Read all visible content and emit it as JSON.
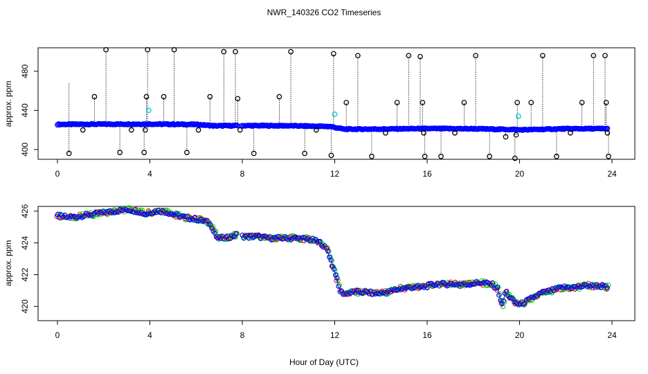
{
  "figure": {
    "title": "NWR_140326  CO2 Timeseries",
    "xlabel": "Hour of Day (UTC)"
  },
  "colors": {
    "main_series": "#0000ff",
    "spikes": "#000000",
    "flagged": "#00cccc",
    "series_alt1": "#00cc00",
    "series_alt2": "#ff0000"
  },
  "chart_data": [
    {
      "type": "scatter",
      "panel": "top",
      "ylabel": "approx. ppm",
      "xlim": [
        0,
        24
      ],
      "ylim": [
        390,
        504
      ],
      "x_ticks": [
        0,
        4,
        8,
        12,
        16,
        20,
        24
      ],
      "y_ticks": [
        400,
        440,
        480
      ],
      "baseline": {
        "x": [
          0,
          2,
          4,
          6,
          6.8,
          7.8,
          8,
          10,
          11.8,
          12.4,
          14,
          16,
          18,
          19.8,
          20,
          22,
          23.8
        ],
        "y": [
          425.7,
          425.9,
          426.0,
          425.6,
          424.2,
          424.4,
          424.4,
          424.3,
          423.5,
          420.8,
          420.9,
          421.4,
          421.2,
          420.4,
          420.1,
          421.2,
          421.3
        ]
      },
      "spikes": {
        "x": [
          0.5,
          1.1,
          1.6,
          2.1,
          2.7,
          3.2,
          3.75,
          3.8,
          3.85,
          3.9,
          4.6,
          5.05,
          5.6,
          6.1,
          6.6,
          7.2,
          7.7,
          7.8,
          7.9,
          8.5,
          9.6,
          10.1,
          10.7,
          11.2,
          11.85,
          11.95,
          12.5,
          13.0,
          13.6,
          14.2,
          14.7,
          15.2,
          15.7,
          15.8,
          15.85,
          15.9,
          16.6,
          17.2,
          17.6,
          18.1,
          18.7,
          19.4,
          19.8,
          19.85,
          19.9,
          20.5,
          21.0,
          21.6,
          22.2,
          22.7,
          23.2,
          23.7,
          23.75,
          23.8,
          23.85
        ],
        "y": [
          396,
          420,
          454,
          502,
          397,
          420,
          397,
          420,
          454,
          502,
          454,
          502,
          397,
          420,
          454,
          500,
          500,
          452,
          420,
          396,
          454,
          500,
          396,
          420,
          394,
          498,
          448,
          496,
          393,
          417,
          448,
          496,
          495,
          448,
          417,
          393,
          393,
          417,
          448,
          496,
          393,
          413,
          391,
          415,
          448,
          448,
          496,
          393,
          417,
          448,
          496,
          496,
          448,
          417,
          393
        ],
        "y_from": [
          468,
          425,
          425,
          425,
          425,
          425,
          425,
          425,
          425,
          425,
          425,
          425,
          425,
          425,
          425,
          425,
          425,
          425,
          425,
          424,
          424,
          424,
          424,
          424,
          424,
          424,
          421,
          421,
          421,
          421,
          421,
          421,
          421,
          421,
          421,
          421,
          421,
          421,
          421,
          421,
          421,
          421,
          420,
          420,
          420,
          420,
          420,
          420,
          421,
          421,
          421,
          421,
          421,
          421,
          421
        ]
      },
      "flagged": {
        "x": [
          3.95,
          12.0,
          19.95
        ],
        "y": [
          440,
          436,
          434
        ]
      }
    },
    {
      "type": "scatter",
      "panel": "bottom",
      "ylabel": "approx. ppm",
      "xlim": [
        0,
        24
      ],
      "ylim": [
        419.1,
        426.3
      ],
      "x_ticks": [
        0,
        4,
        8,
        12,
        16,
        20,
        24
      ],
      "y_ticks": [
        420,
        422,
        424,
        426
      ],
      "series": [
        {
          "name": "",
          "x": [
            0,
            0.5,
            1,
            1.5,
            2,
            2.5,
            3,
            3.5,
            3.8,
            4.2,
            4.6,
            5,
            5.5,
            6,
            6.5,
            6.7,
            6.9,
            7.3,
            7.7,
            8.1,
            8.6,
            9.2,
            9.8,
            10.4,
            11,
            11.4,
            11.7,
            11.9,
            12.05,
            12.2,
            12.4,
            12.8,
            13.3,
            13.8,
            14.3,
            14.8,
            15.3,
            15.8,
            16.3,
            16.8,
            17.3,
            17.8,
            18.3,
            18.8,
            19.05,
            19.25,
            19.4,
            19.55,
            19.75,
            20.0,
            20.4,
            20.9,
            21.4,
            21.9,
            22.4,
            22.9,
            23.4,
            23.8
          ],
          "y": [
            425.7,
            425.6,
            425.7,
            425.8,
            425.9,
            426.0,
            426.1,
            426.0,
            425.8,
            426.0,
            426.0,
            425.8,
            425.6,
            425.5,
            425.3,
            425.0,
            424.3,
            424.3,
            424.5,
            424.4,
            424.4,
            424.3,
            424.3,
            424.3,
            424.2,
            424.0,
            423.5,
            422.6,
            422.0,
            421.0,
            420.8,
            420.9,
            420.9,
            420.8,
            420.9,
            421.1,
            421.2,
            421.2,
            421.4,
            421.4,
            421.4,
            421.4,
            421.5,
            421.4,
            421.1,
            420.0,
            421.0,
            420.6,
            420.3,
            420.1,
            420.4,
            420.8,
            421.0,
            421.2,
            421.2,
            421.3,
            421.3,
            421.2
          ]
        }
      ]
    }
  ]
}
